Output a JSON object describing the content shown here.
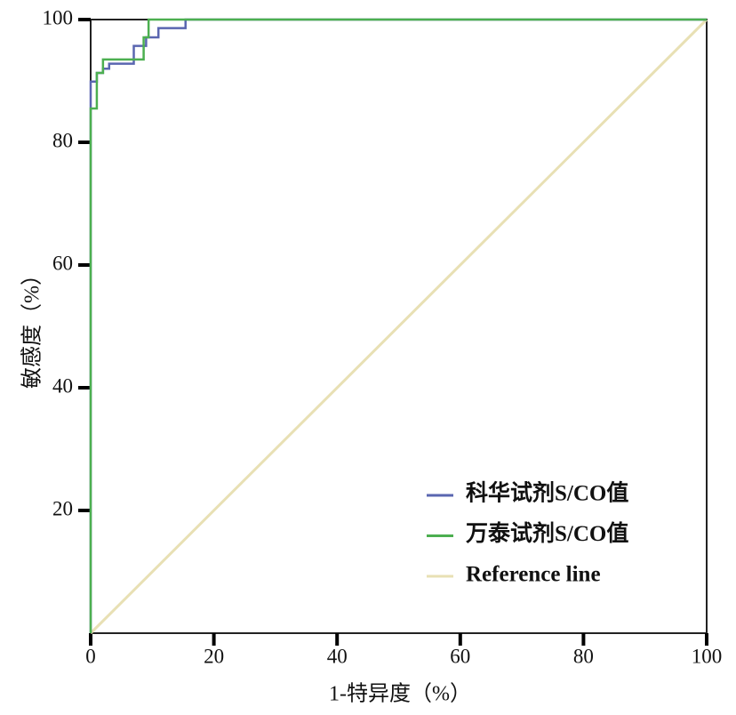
{
  "chart_data": {
    "type": "line",
    "x_label": "1-特异度（%）",
    "y_label": "敏感度（%）",
    "xlim": [
      0,
      100
    ],
    "ylim": [
      0,
      100
    ],
    "xticks": [
      0,
      20,
      40,
      60,
      80,
      100
    ],
    "yticks": [
      20,
      40,
      60,
      80,
      100
    ],
    "legend": "lower right",
    "series": [
      {
        "name": "科华试剂S/CO值",
        "color": "#5a66b0",
        "x": [
          0,
          0,
          1,
          1,
          2,
          2,
          3,
          3,
          7,
          7,
          9,
          9,
          11,
          11,
          15.4,
          15.4,
          100
        ],
        "values": [
          0,
          89.9,
          89.9,
          91.3,
          91.3,
          92,
          92,
          92.8,
          92.8,
          95.7,
          95.7,
          97.1,
          97.1,
          98.6,
          98.6,
          100,
          100
        ]
      },
      {
        "name": "万泰试剂S/CO值",
        "color": "#4caf50",
        "x": [
          0,
          0,
          1,
          1,
          2,
          2,
          8.6,
          8.6,
          9.4,
          9.4,
          100
        ],
        "values": [
          0,
          85.5,
          85.5,
          91.3,
          91.3,
          93.5,
          93.5,
          97.1,
          97.1,
          100,
          100
        ]
      },
      {
        "name": "Reference line",
        "color": "#e8e0b4",
        "x": [
          0,
          100
        ],
        "values": [
          0,
          100
        ]
      }
    ]
  }
}
